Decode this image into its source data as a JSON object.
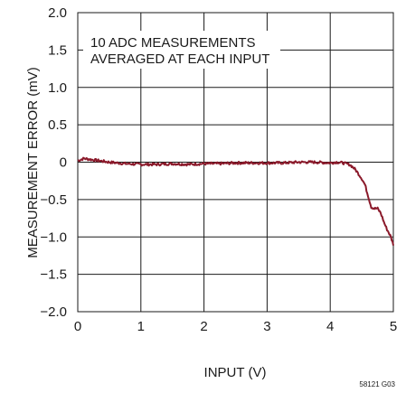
{
  "chart_data": {
    "type": "line",
    "title": "",
    "xlabel": "INPUT (V)",
    "ylabel": "MEASUREMENT ERROR (mV)",
    "xlim": [
      0,
      5
    ],
    "ylim": [
      -2.0,
      2.0
    ],
    "x_ticks": [
      0,
      1,
      2,
      3,
      4,
      5
    ],
    "x_tick_labels": [
      "0",
      "1",
      "2",
      "3",
      "4",
      "5"
    ],
    "y_ticks": [
      2.0,
      1.5,
      1.0,
      0.5,
      0,
      -0.5,
      -1.0,
      -1.5,
      -2.0
    ],
    "y_tick_labels": [
      "2.0",
      "1.5",
      "1.0",
      "0.5",
      "0",
      "−0.5",
      "−1.0",
      "−1.5",
      "−2.0"
    ],
    "grid": true,
    "annotation": [
      "10 ADC MEASUREMENTS",
      "AVERAGED AT EACH INPUT"
    ],
    "figure_code": "58121 G03",
    "line_color": "#8b1a2b",
    "series": [
      {
        "x": [
          0,
          0.1,
          0.25,
          0.5,
          0.75,
          1.0,
          1.25,
          1.5,
          1.75,
          2.0,
          2.25,
          2.5,
          2.75,
          3.0,
          3.25,
          3.5,
          3.75,
          4.0,
          4.1,
          4.2,
          4.3,
          4.35,
          4.4,
          4.45,
          4.5,
          4.55,
          4.6,
          4.65,
          4.7,
          4.75,
          4.8,
          4.85,
          4.9,
          4.95,
          5.0
        ],
        "y": [
          0.02,
          0.05,
          0.03,
          0.0,
          -0.02,
          -0.03,
          -0.03,
          -0.02,
          -0.03,
          -0.02,
          -0.02,
          -0.01,
          -0.01,
          -0.01,
          -0.01,
          0.0,
          0.0,
          -0.01,
          0.0,
          -0.01,
          -0.03,
          -0.06,
          -0.1,
          -0.16,
          -0.22,
          -0.3,
          -0.45,
          -0.6,
          -0.62,
          -0.62,
          -0.68,
          -0.8,
          -0.9,
          -0.98,
          -1.1
        ]
      }
    ]
  }
}
